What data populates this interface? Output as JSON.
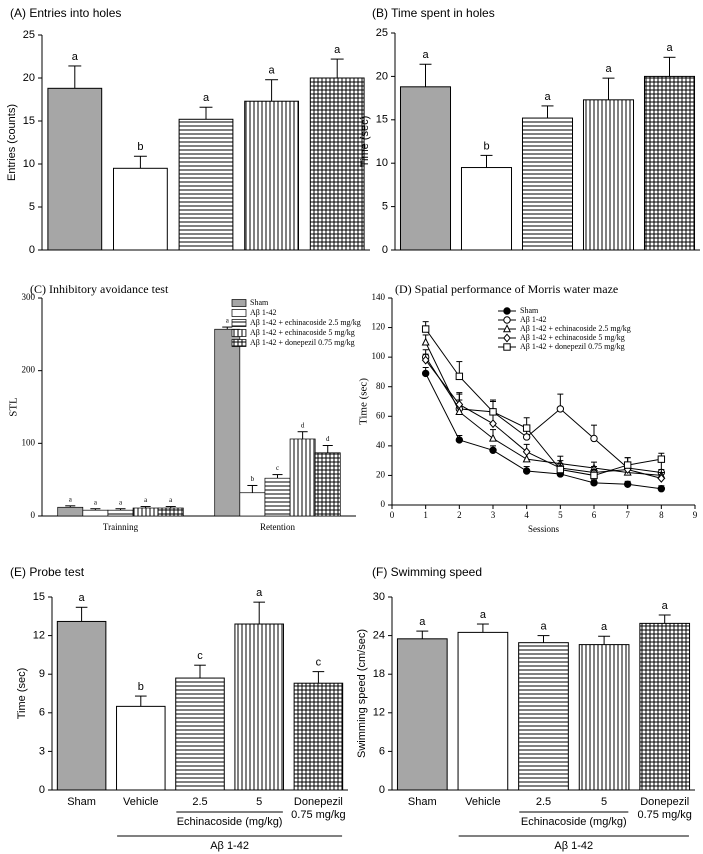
{
  "chart_data": [
    {
      "type": "bar",
      "title": "(A) Entries into holes",
      "ylabel": "Entries (counts)",
      "values": [
        18.8,
        9.5,
        15.2,
        17.3,
        20.0
      ],
      "errors": [
        2.6,
        1.4,
        1.4,
        2.5,
        2.2
      ],
      "letters": [
        "a",
        "b",
        "a",
        "a",
        "a"
      ],
      "fills": [
        "#a6a6a6",
        "#ffffff",
        "horizontal",
        "vertical",
        "crosshatch"
      ],
      "ylim": [
        0,
        25
      ],
      "yticks": [
        0,
        5,
        10,
        15,
        20,
        25
      ]
    },
    {
      "type": "bar",
      "title": "(B) Time spent in holes",
      "ylabel": "Time (sec)",
      "values": [
        18.8,
        9.5,
        15.2,
        17.3,
        20.0
      ],
      "errors": [
        2.6,
        1.4,
        1.4,
        2.5,
        2.2
      ],
      "letters": [
        "a",
        "b",
        "a",
        "a",
        "a"
      ],
      "fills": [
        "#a6a6a6",
        "#ffffff",
        "horizontal",
        "vertical",
        "crosshatch"
      ],
      "ylim": [
        0,
        25
      ],
      "yticks": [
        0,
        5,
        10,
        15,
        20,
        25
      ]
    },
    {
      "type": "grouped-bar",
      "title": "(C) Inhibitory avoidance test",
      "ylabel": "STL",
      "categories": [
        "Trainning",
        "Retention"
      ],
      "series": [
        {
          "name": "Sham",
          "fill": "#a6a6a6",
          "values": [
            12,
            257
          ],
          "errors": [
            2,
            3
          ],
          "letters": [
            "a",
            "a"
          ]
        },
        {
          "name": "Aβ 1-42",
          "fill": "#ffffff",
          "values": [
            8,
            32
          ],
          "errors": [
            2,
            10
          ],
          "letters": [
            "a",
            "b"
          ]
        },
        {
          "name": "Aβ 1-42 + echinacoside 2.5 mg/kg",
          "fill": "horizontal",
          "values": [
            8,
            52
          ],
          "errors": [
            2,
            5
          ],
          "letters": [
            "a",
            "c"
          ]
        },
        {
          "name": "Aβ 1-42 + echinacoside 5 mg/kg",
          "fill": "vertical",
          "values": [
            11,
            106
          ],
          "errors": [
            2,
            10
          ],
          "letters": [
            "a",
            "d"
          ]
        },
        {
          "name": "Aβ 1-42 + donepezil 0.75 mg/kg",
          "fill": "crosshatch",
          "values": [
            11,
            87
          ],
          "errors": [
            2,
            10
          ],
          "letters": [
            "a",
            "d"
          ]
        }
      ],
      "ylim": [
        0,
        300
      ],
      "yticks": [
        0,
        100,
        200,
        300
      ]
    },
    {
      "type": "line",
      "title": "(D) Spatial performance of Morris water maze",
      "xlabel": "Sessions",
      "ylabel": "Time (sec)",
      "x": [
        1,
        2,
        3,
        4,
        5,
        6,
        7,
        8
      ],
      "series": [
        {
          "name": "Sham",
          "marker": "circle-filled",
          "values": [
            89,
            44,
            37,
            23,
            21,
            15,
            14,
            11
          ],
          "errors": [
            4,
            3,
            3,
            3,
            2,
            2,
            2,
            2
          ]
        },
        {
          "name": "Aβ 1-42",
          "marker": "circle",
          "values": [
            100,
            65,
            63,
            46,
            65,
            45,
            25,
            22
          ],
          "errors": [
            5,
            10,
            8,
            6,
            10,
            9,
            7,
            8
          ]
        },
        {
          "name": "Aβ 1-42 + echinacoside 2.5 mg/kg",
          "marker": "triangle",
          "values": [
            110,
            63,
            45,
            31,
            28,
            25,
            22,
            20
          ],
          "errors": [
            5,
            8,
            6,
            5,
            5,
            4,
            4,
            4
          ]
        },
        {
          "name": "Aβ 1-42 + echinacoside 5 mg/kg",
          "marker": "diamond",
          "values": [
            98,
            68,
            55,
            36,
            25,
            22,
            24,
            18
          ],
          "errors": [
            4,
            8,
            6,
            5,
            5,
            4,
            4,
            4
          ]
        },
        {
          "name": "Aβ 1-42 + donepezil 0.75 mg/kg",
          "marker": "square",
          "values": [
            119,
            87,
            63,
            52,
            24,
            20,
            27,
            31
          ],
          "errors": [
            5,
            10,
            7,
            7,
            4,
            4,
            5,
            4
          ]
        }
      ],
      "xlim": [
        0,
        9
      ],
      "xticks": [
        0,
        1,
        2,
        3,
        4,
        5,
        6,
        7,
        8,
        9
      ],
      "ylim": [
        0,
        140
      ],
      "yticks": [
        0,
        20,
        40,
        60,
        80,
        100,
        120,
        140
      ]
    },
    {
      "type": "bar",
      "title": "(E) Probe test",
      "ylabel": "Time (sec)",
      "categories": [
        "Sham",
        "Vehicle",
        "2.5",
        "5",
        "Donepezil 0.75 mg/kg"
      ],
      "values": [
        13.1,
        6.5,
        8.7,
        12.9,
        8.3
      ],
      "errors": [
        1.1,
        0.8,
        1.0,
        1.7,
        0.9
      ],
      "letters": [
        "a",
        "b",
        "c",
        "a",
        "c"
      ],
      "fills": [
        "#a6a6a6",
        "#ffffff",
        "horizontal",
        "vertical",
        "crosshatch"
      ],
      "groups": [
        {
          "label": "Echinacoside (mg/kg)",
          "from": 2,
          "to": 3
        },
        {
          "label": "Aβ 1-42",
          "from": 1,
          "to": 4
        }
      ],
      "ylim": [
        0,
        15
      ],
      "yticks": [
        0,
        3,
        6,
        9,
        12,
        15
      ]
    },
    {
      "type": "bar",
      "title": "(F) Swimming speed",
      "ylabel": "Swimming speed (cm/sec)",
      "categories": [
        "Sham",
        "Vehicle",
        "2.5",
        "5",
        "Donepezil 0.75 mg/kg"
      ],
      "values": [
        23.5,
        24.5,
        22.9,
        22.6,
        25.9
      ],
      "errors": [
        1.2,
        1.3,
        1.1,
        1.3,
        1.3
      ],
      "letters": [
        "a",
        "a",
        "a",
        "a",
        "a"
      ],
      "fills": [
        "#a6a6a6",
        "#ffffff",
        "horizontal",
        "vertical",
        "crosshatch"
      ],
      "groups": [
        {
          "label": "Echinacoside (mg/kg)",
          "from": 2,
          "to": 3
        },
        {
          "label": "Aβ 1-42",
          "from": 1,
          "to": 4
        }
      ],
      "ylim": [
        0,
        30
      ],
      "yticks": [
        0,
        6,
        12,
        18,
        24,
        30
      ]
    }
  ]
}
